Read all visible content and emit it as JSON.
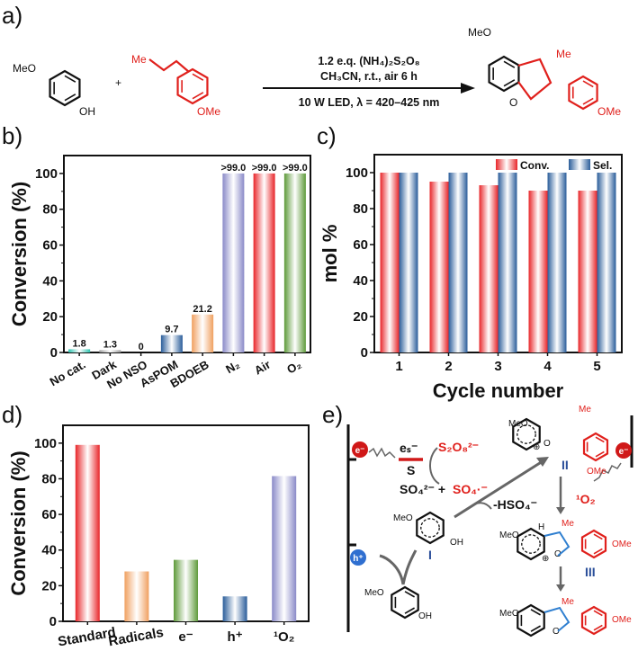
{
  "panel_labels": {
    "a": "a)",
    "b": "b)",
    "c": "c)",
    "d": "d)",
    "e": "e)"
  },
  "scheme_a": {
    "reactant1_substituents": [
      "MeO",
      "OH"
    ],
    "plus": "+",
    "reactant2_substituents": [
      "Me",
      "OMe"
    ],
    "conditions": [
      "1.2 e.q. (NH₄)₂S₂O₈",
      "CH₃CN, r.t., air 6 h",
      "10 W LED, λ = 420–425 nm"
    ],
    "product_substituents": [
      "MeO",
      "Me",
      "O",
      "OMe"
    ]
  },
  "chart_data": [
    {
      "id": "b",
      "type": "bar",
      "title": "",
      "xlabel": "",
      "ylabel": "Conversion (%)",
      "ylim": [
        0,
        110
      ],
      "yticks": [
        0,
        20,
        40,
        60,
        80,
        100
      ],
      "categories": [
        "No cat.",
        "Dark",
        "No NSO",
        "AsPOM",
        "BDOEB",
        "N₂",
        "Air",
        "O₂"
      ],
      "values": [
        1.8,
        1.3,
        0,
        9.7,
        21.2,
        100,
        100,
        100
      ],
      "data_labels": [
        "1.8",
        "1.3",
        "0",
        "9.7",
        "21.2",
        ">99.0",
        ">99.0",
        ">99.0"
      ],
      "colors": [
        "#2ec4b0",
        "#9a9a9a",
        "#9a9a9a",
        "#2a5d9a",
        "#f0a060",
        "#8a8ac8",
        "#e8262a",
        "#5e9a3a"
      ]
    },
    {
      "id": "c",
      "type": "bar",
      "title": "",
      "xlabel": "Cycle number",
      "ylabel": "mol %",
      "ylim": [
        0,
        110
      ],
      "yticks": [
        0,
        20,
        40,
        60,
        80,
        100
      ],
      "categories": [
        "1",
        "2",
        "3",
        "4",
        "5"
      ],
      "series": [
        {
          "name": "Conv.",
          "values": [
            100,
            95,
            93,
            90,
            90
          ],
          "color": "#e8262a"
        },
        {
          "name": "Sel.",
          "values": [
            100,
            100,
            100,
            100,
            100
          ],
          "color": "#2a5d9a"
        }
      ],
      "legend": "top-right"
    },
    {
      "id": "d",
      "type": "bar",
      "title": "",
      "xlabel": "",
      "ylabel": "Conversion (%)",
      "ylim": [
        0,
        110
      ],
      "yticks": [
        0,
        20,
        40,
        60,
        80,
        100
      ],
      "categories": [
        "Standard",
        "Radicals",
        "e⁻",
        "h⁺",
        "¹O₂"
      ],
      "values": [
        99,
        28,
        34.5,
        14,
        81.5
      ],
      "colors": [
        "#e8262a",
        "#f0a060",
        "#5e9a3a",
        "#2a5d9a",
        "#8a8ac8"
      ]
    }
  ],
  "mechanism_e": {
    "electron": "e⁻",
    "hole": "h⁺",
    "es_label": "eₛ⁻",
    "s_label": "S",
    "persulfate": "S₂O₈²⁻",
    "sulfate": "SO₄²⁻ +",
    "sulfate_radical": "SO₄·⁻",
    "hso4": "-HSO₄⁻",
    "singlet_oxygen": "¹O₂",
    "intermediates": [
      "I",
      "II",
      "III"
    ],
    "substituents": {
      "meo": "MeO",
      "oh": "OH",
      "me": "Me",
      "ome": "OMe",
      "o": "O",
      "h": "H",
      "plus": "⊕"
    }
  },
  "colors": {
    "red": "#e0201c",
    "blue": "#2a4f9a",
    "arrow": "#666666"
  }
}
